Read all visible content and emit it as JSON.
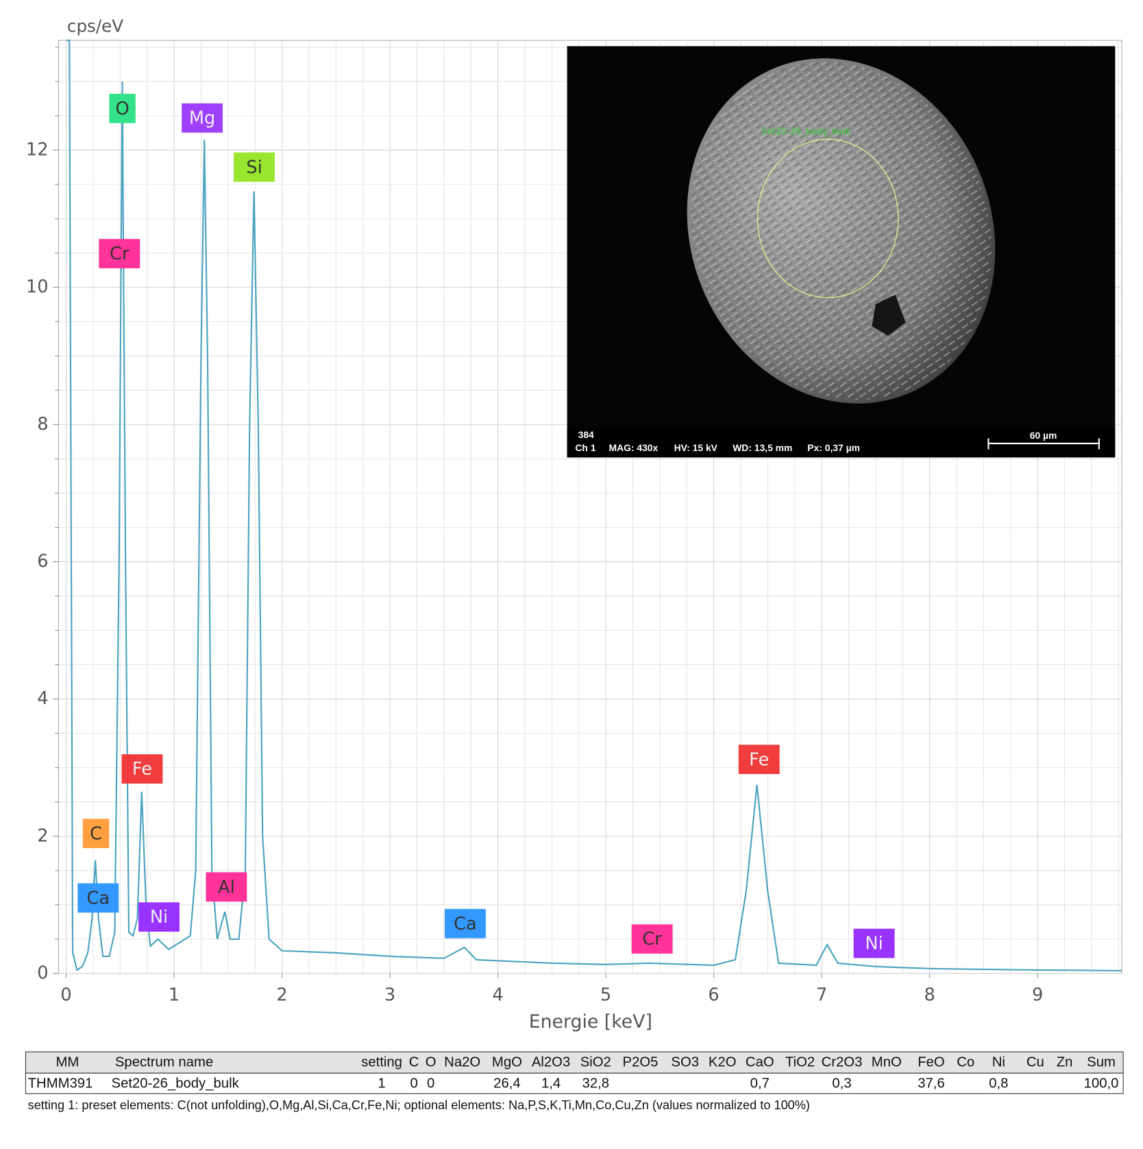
{
  "chart_data": {
    "type": "line",
    "xlabel": "Energie [keV]",
    "ylabel": "cps/eV",
    "xlim": [
      -0.07,
      9.78
    ],
    "ylim": [
      0,
      13.6
    ],
    "xticks": [
      0,
      1,
      2,
      3,
      4,
      5,
      6,
      7,
      8,
      9
    ],
    "yticks": [
      0,
      2,
      4,
      6,
      8,
      10,
      12
    ],
    "grid": true,
    "x": [
      0.0,
      0.03,
      0.06,
      0.1,
      0.15,
      0.2,
      0.24,
      0.27,
      0.3,
      0.34,
      0.4,
      0.45,
      0.49,
      0.52,
      0.55,
      0.58,
      0.62,
      0.66,
      0.7,
      0.74,
      0.78,
      0.85,
      0.95,
      1.05,
      1.15,
      1.2,
      1.25,
      1.28,
      1.31,
      1.35,
      1.4,
      1.47,
      1.52,
      1.6,
      1.66,
      1.7,
      1.74,
      1.78,
      1.82,
      1.88,
      2.0,
      2.5,
      3.0,
      3.5,
      3.69,
      3.8,
      4.5,
      5.0,
      5.4,
      6.0,
      6.2,
      6.3,
      6.4,
      6.5,
      6.6,
      6.95,
      7.05,
      7.15,
      7.5,
      8.0,
      9.0,
      9.78
    ],
    "series": [
      {
        "color": "#4aa3c0",
        "values": [
          13.6,
          13.6,
          0.3,
          0.05,
          0.1,
          0.3,
          0.8,
          1.65,
          0.8,
          0.25,
          0.25,
          0.6,
          6,
          13.0,
          6,
          0.6,
          0.55,
          0.8,
          2.65,
          1.0,
          0.4,
          0.5,
          0.35,
          0.45,
          0.55,
          1.5,
          9,
          12.15,
          9,
          1.5,
          0.5,
          0.9,
          0.5,
          0.5,
          1.5,
          8,
          11.4,
          8,
          2,
          0.5,
          0.33,
          0.3,
          0.25,
          0.22,
          0.38,
          0.2,
          0.15,
          0.13,
          0.15,
          0.12,
          0.2,
          1.2,
          2.75,
          1.2,
          0.15,
          0.12,
          0.42,
          0.15,
          0.1,
          0.07,
          0.05,
          0.04
        ]
      }
    ],
    "annotations": [
      {
        "text": "O",
        "color": "#33e38a"
      },
      {
        "text": "Mg",
        "color": "#a040ff"
      },
      {
        "text": "Si",
        "color": "#99e62e"
      },
      {
        "text": "Cr",
        "color": "#ff3399"
      },
      {
        "text": "Fe",
        "color": "#f03c3c"
      },
      {
        "text": "C",
        "color": "#ffa040"
      },
      {
        "text": "Ca",
        "color": "#3399ff"
      },
      {
        "text": "Ni",
        "color": "#9933ff"
      },
      {
        "text": "Al",
        "color": "#ff3399"
      },
      {
        "text": "Ca",
        "color": "#3399ff"
      },
      {
        "text": "Cr",
        "color": "#ff3399"
      },
      {
        "text": "Fe",
        "color": "#f03c3c"
      },
      {
        "text": "Ni",
        "color": "#9933ff"
      }
    ]
  },
  "sem_image": {
    "id": "384",
    "channel": "Ch 1",
    "mag": "MAG: 430x",
    "hv": "HV: 15 kV",
    "wd": "WD: 13,5 mm",
    "px": "Px: 0,37 µm",
    "scale": "60 µm",
    "region": "Set20-26_body_bulk"
  },
  "table": {
    "header": [
      "MM",
      "Spectrum name",
      "setting",
      "C",
      "O",
      "Na2O",
      "MgO",
      "Al2O3",
      "SiO2",
      "P2O5",
      "SO3",
      "K2O",
      "CaO",
      "TiO2",
      "Cr2O3",
      "MnO",
      "FeO",
      "Co",
      "Ni",
      "Cu",
      "Zn",
      "Sum"
    ],
    "rows": [
      [
        "THMM391",
        "Set20-26_body_bulk",
        "1",
        "0",
        "0",
        null,
        "26,4",
        "1,4",
        "32,8",
        null,
        null,
        null,
        "0,7",
        null,
        "0,3",
        null,
        "37,6",
        null,
        "0,8",
        null,
        null,
        "100,0"
      ]
    ]
  },
  "footnote": "setting 1: preset elements: C(not unfolding),O,Mg,Al,Si,Ca,Cr,Fe,Ni; optional elements: Na,P,S,K,Ti,Mn,Co,Cu,Zn (values normalized to 100%)"
}
